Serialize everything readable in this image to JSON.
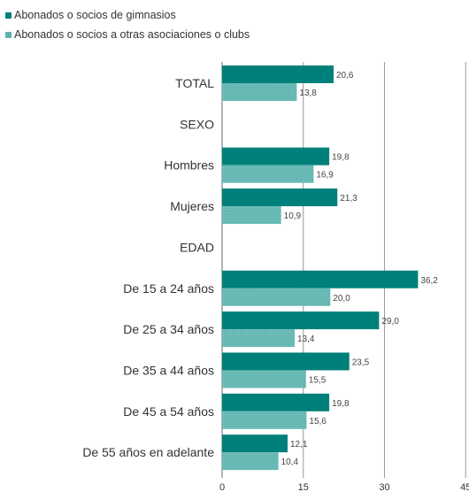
{
  "colors": {
    "series1": "#00807A",
    "series2": "#5DB3AE",
    "grid": "#9a9a9a"
  },
  "chart_data": {
    "type": "bar",
    "orientation": "horizontal",
    "categories": [
      "TOTAL",
      "SEXO",
      "Hombres",
      "Mujeres",
      "EDAD",
      "De 15 a 24 años",
      "De 25 a 34 años",
      "De 35 a 44 años",
      "De 45 a 54 años",
      "De 55 años en adelante"
    ],
    "series": [
      {
        "name": "Abonados o socios de gimnasios",
        "values": [
          20.6,
          null,
          19.8,
          21.3,
          null,
          36.2,
          29.0,
          23.5,
          19.8,
          12.1
        ],
        "labels": [
          "20,6",
          "",
          "19,8",
          "21,3",
          "",
          "36,2",
          "29,0",
          "23,5",
          "19,8",
          "12,1"
        ]
      },
      {
        "name": "Abonados o socios a otras asociaciones o clubs",
        "values": [
          13.8,
          null,
          16.9,
          10.9,
          null,
          20.0,
          13.4,
          15.5,
          15.6,
          10.4
        ],
        "labels": [
          "13,8",
          "",
          "16,9",
          "10,9",
          "",
          "20,0",
          "13,4",
          "15,5",
          "15,6",
          "10,4"
        ]
      }
    ],
    "xlim": [
      0,
      45
    ],
    "xticks": [
      0,
      15,
      30,
      45
    ],
    "xtick_labels": [
      "0",
      "15",
      "30",
      "45"
    ],
    "grid": true,
    "legend": "top-left"
  }
}
